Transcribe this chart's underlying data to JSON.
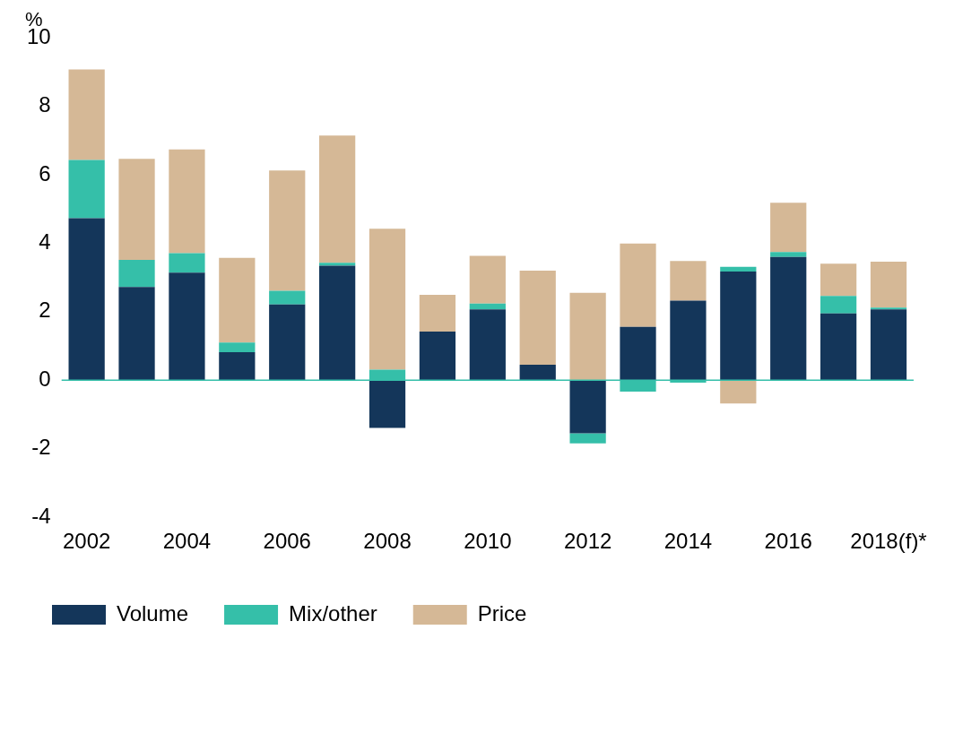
{
  "chart_data": {
    "type": "bar",
    "stacked": true,
    "ylabel": "%",
    "categories": [
      "2002",
      null,
      "2004",
      null,
      "2006",
      null,
      "2008",
      null,
      "2010",
      null,
      "2012",
      null,
      "2014",
      null,
      "2016",
      null,
      "2018(f)*"
    ],
    "series": [
      {
        "name": "Volume",
        "color": "#14365a",
        "values": [
          4.73,
          2.72,
          3.14,
          0.82,
          2.21,
          3.34,
          -1.39,
          1.42,
          2.07,
          0.45,
          -1.55,
          1.56,
          2.32,
          3.17,
          3.6,
          1.95,
          2.07
        ]
      },
      {
        "name": "Mix/other",
        "color": "#35bfa9",
        "values": [
          1.7,
          0.79,
          0.57,
          0.28,
          0.4,
          0.09,
          0.31,
          0,
          0.17,
          null,
          -0.29,
          -0.33,
          -0.07,
          0.14,
          0.14,
          0.51,
          0.05
        ]
      },
      {
        "name": "Price",
        "color": "#d5b896",
        "values": [
          2.64,
          2.95,
          3.03,
          2.47,
          3.51,
          3.71,
          4.11,
          1.07,
          1.39,
          2.75,
          2.55,
          2.43,
          1.16,
          -0.68,
          1.44,
          0.94,
          1.34
        ]
      }
    ],
    "ylim": [
      -4,
      10
    ],
    "yticks": [
      -4,
      -2,
      0,
      2,
      4,
      6,
      8,
      10
    ],
    "grid": false,
    "legend": "bottom",
    "ref_lines": [
      {
        "axis": "y",
        "value": 0,
        "color": "#35bfa9"
      }
    ]
  }
}
